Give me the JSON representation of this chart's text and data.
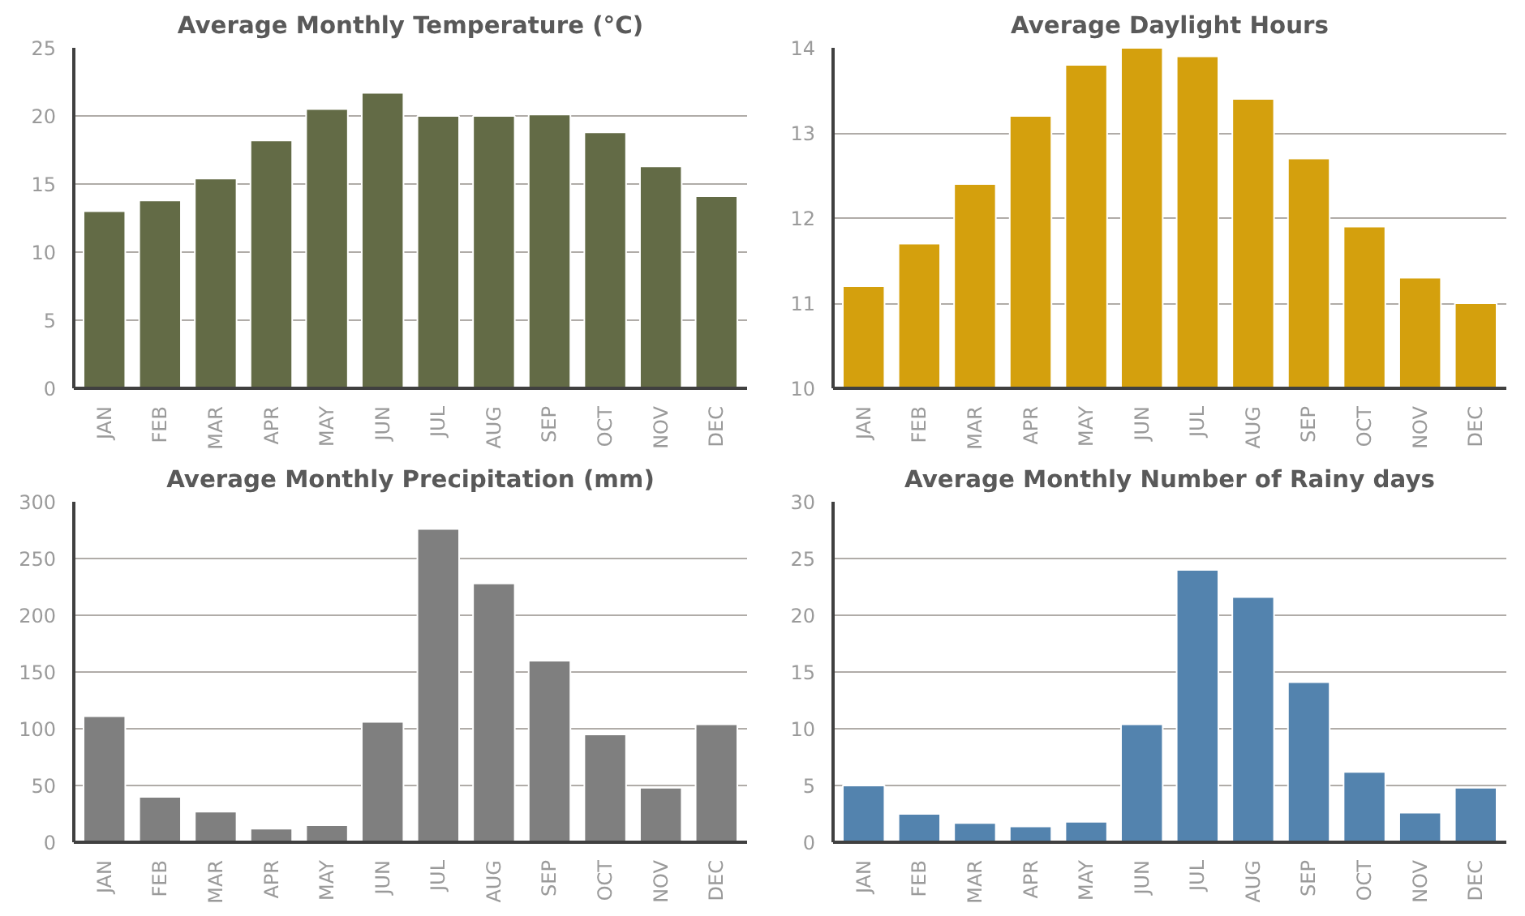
{
  "chart_data": [
    {
      "type": "bar",
      "title": "Average Monthly Temperature (°C)",
      "categories": [
        "JAN",
        "FEB",
        "MAR",
        "APR",
        "MAY",
        "JUN",
        "JUL",
        "AUG",
        "SEP",
        "OCT",
        "NOV",
        "DEC"
      ],
      "values": [
        13,
        13.8,
        15.4,
        18.2,
        20.5,
        21.7,
        20,
        20,
        20.1,
        18.8,
        16.3,
        14.1
      ],
      "color": "#636b46",
      "ylim": [
        0,
        25
      ],
      "yticks": [
        0,
        5,
        10,
        15,
        20,
        25
      ],
      "grid": "y"
    },
    {
      "type": "bar",
      "title": "Average Daylight Hours",
      "categories": [
        "JAN",
        "FEB",
        "MAR",
        "APR",
        "MAY",
        "JUN",
        "JUL",
        "AUG",
        "SEP",
        "OCT",
        "NOV",
        "DEC"
      ],
      "values": [
        11.2,
        11.7,
        12.4,
        13.2,
        13.8,
        14,
        13.9,
        13.4,
        12.7,
        11.9,
        11.3,
        11
      ],
      "color": "#d4a00d",
      "ylim": [
        10,
        14
      ],
      "yticks": [
        10,
        11,
        12,
        13,
        14
      ],
      "grid": "y"
    },
    {
      "type": "bar",
      "title": "Average Monthly Precipitation (mm)",
      "categories": [
        "JAN",
        "FEB",
        "MAR",
        "APR",
        "MAY",
        "JUN",
        "JUL",
        "AUG",
        "SEP",
        "OCT",
        "NOV",
        "DEC"
      ],
      "values": [
        111,
        40,
        27,
        12,
        15,
        106,
        276,
        228,
        160,
        95,
        48,
        104
      ],
      "color": "#7f7f7f",
      "ylim": [
        0,
        300
      ],
      "yticks": [
        0,
        50,
        100,
        150,
        200,
        250,
        300
      ],
      "grid": "y"
    },
    {
      "type": "bar",
      "title": "Average Monthly Number of Rainy days",
      "categories": [
        "JAN",
        "FEB",
        "MAR",
        "APR",
        "MAY",
        "JUN",
        "JUL",
        "AUG",
        "SEP",
        "OCT",
        "NOV",
        "DEC"
      ],
      "values": [
        5,
        2.5,
        1.7,
        1.4,
        1.8,
        10.4,
        24,
        21.6,
        14.1,
        6.2,
        2.6,
        4.8
      ],
      "color": "#5383ae",
      "ylim": [
        0,
        30
      ],
      "yticks": [
        0,
        5,
        10,
        15,
        20,
        25,
        30
      ],
      "grid": "y"
    }
  ]
}
